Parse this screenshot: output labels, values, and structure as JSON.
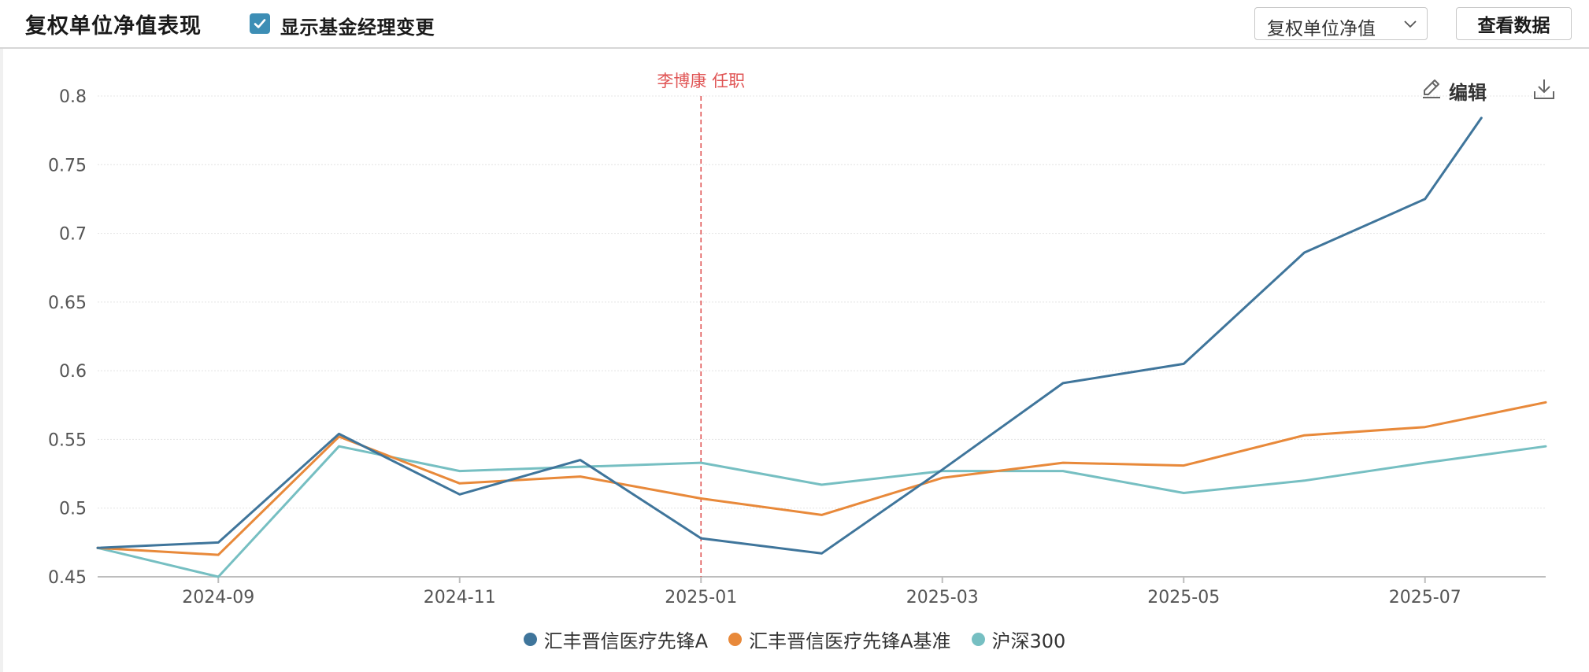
{
  "header": {
    "title": "复权单位净值表现",
    "checkbox_label": "显示基金经理变更",
    "checkbox_checked": true,
    "select_value": "复权单位净值",
    "view_data_button": "查看数据"
  },
  "toolbar": {
    "edit_label": "编辑",
    "edit_icon": "pencil-icon",
    "download_icon": "download-icon"
  },
  "colors": {
    "accent": "#3d8eb5",
    "grid": "#e4e4e4",
    "axis": "#bdbdbd",
    "marker": "#e05555"
  },
  "chart_data": {
    "type": "line",
    "title": "",
    "xlabel": "",
    "ylabel": "",
    "xlim": [
      "2024-08",
      "2025-08"
    ],
    "ylim": [
      0.45,
      0.8
    ],
    "yticks": [
      "0.45",
      "0.5",
      "0.55",
      "0.6",
      "0.65",
      "0.7",
      "0.75",
      "0.8"
    ],
    "xticks": [
      "2024-09",
      "2024-11",
      "2025-01",
      "2025-03",
      "2025-05",
      "2025-07"
    ],
    "grid": true,
    "legend_position": "bottom-center",
    "x": [
      "2024-08",
      "2024-09",
      "2024-10",
      "2024-11",
      "2024-12",
      "2025-01",
      "2025-02",
      "2025-03",
      "2025-04",
      "2025-05",
      "2025-06",
      "2025-07",
      "2025-08"
    ],
    "annotations": [
      {
        "x": "2025-01",
        "label": "李博康 任职",
        "color": "#e05555"
      }
    ],
    "series": [
      {
        "name": "汇丰晋信医疗先锋A",
        "color": "#3f759b",
        "values": [
          0.471,
          0.475,
          0.554,
          0.51,
          0.535,
          0.478,
          0.467,
          0.528,
          0.591,
          0.605,
          0.686,
          0.725,
          0.784
        ],
        "end_x": "2025-07-15"
      },
      {
        "name": "汇丰晋信医疗先锋A基准",
        "color": "#e8893a",
        "values": [
          0.471,
          0.466,
          0.552,
          0.518,
          0.523,
          0.507,
          0.495,
          0.522,
          0.533,
          0.531,
          0.553,
          0.559,
          0.577
        ]
      },
      {
        "name": "沪深300",
        "color": "#76bfc2",
        "values": [
          0.471,
          0.45,
          0.545,
          0.527,
          0.53,
          0.533,
          0.517,
          0.527,
          0.527,
          0.511,
          0.52,
          0.533,
          0.545
        ]
      }
    ]
  }
}
